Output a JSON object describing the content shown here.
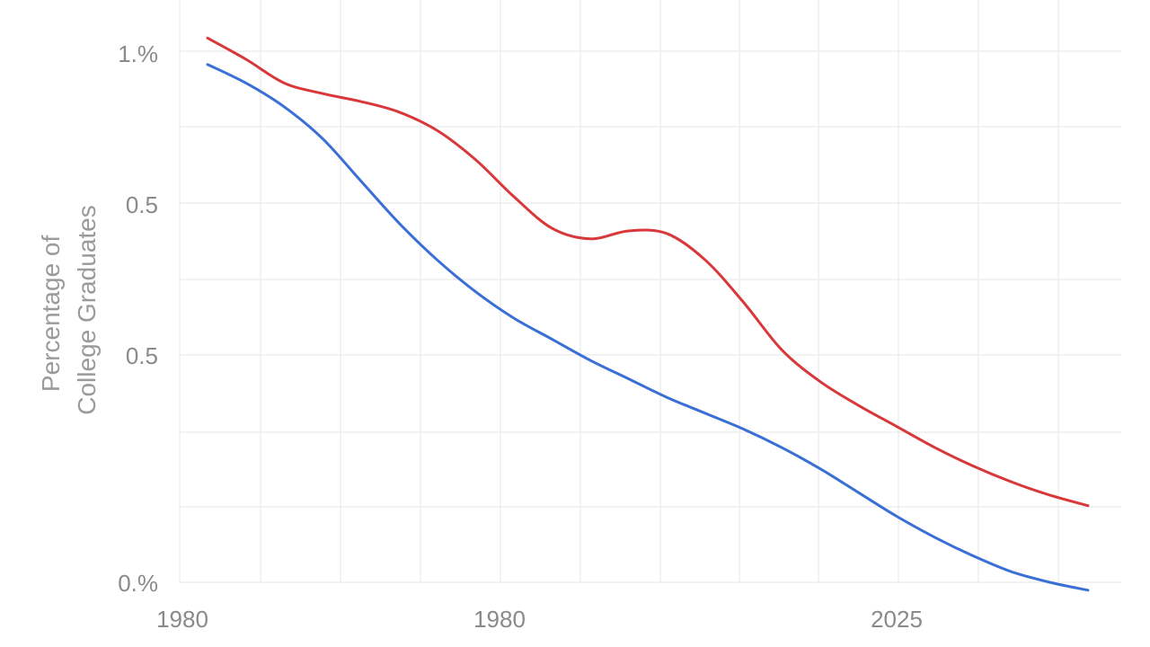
{
  "chart_data": {
    "type": "line",
    "title": "",
    "xlabel": "",
    "ylabel_lines": [
      "Percentage of",
      "College Graduates"
    ],
    "x_tick_labels": [
      "1980",
      "1980",
      "2025"
    ],
    "y_tick_labels": [
      "1.%",
      "0.5",
      "0.5",
      "0.%"
    ],
    "grid": true,
    "legend": "none",
    "series": [
      {
        "color": "#d9383a",
        "values": [
          1.03,
          0.99,
          0.945,
          0.925,
          0.91,
          0.89,
          0.855,
          0.8,
          0.73,
          0.67,
          0.65,
          0.665,
          0.66,
          0.61,
          0.53,
          0.44,
          0.38,
          0.335,
          0.295,
          0.255,
          0.22,
          0.19,
          0.165,
          0.145
        ]
      },
      {
        "color": "#3a6fd6",
        "values": [
          0.98,
          0.945,
          0.9,
          0.84,
          0.76,
          0.68,
          0.61,
          0.55,
          0.5,
          0.46,
          0.42,
          0.385,
          0.35,
          0.32,
          0.29,
          0.255,
          0.215,
          0.17,
          0.125,
          0.085,
          0.05,
          0.02,
          0.0,
          -0.015
        ]
      }
    ]
  }
}
